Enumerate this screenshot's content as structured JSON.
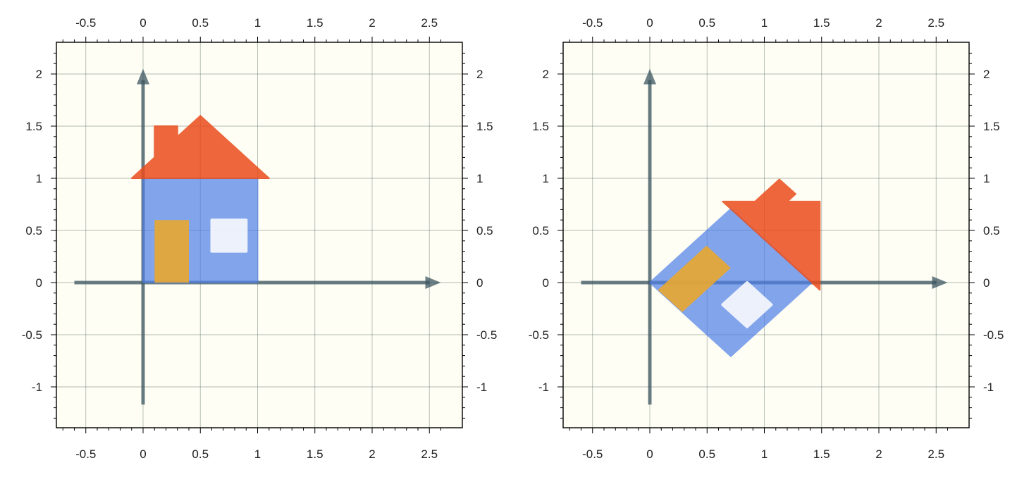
{
  "x_ticks": [
    "-0.5",
    "0",
    "0.5",
    "1",
    "1.5",
    "2",
    "2.5"
  ],
  "y_ticks": [
    "2",
    "1.5",
    "1",
    "0.5",
    "0",
    "-0.5",
    "-1"
  ],
  "colors": {
    "house_body": "#4d7ee8",
    "roof": "#ea4c1c",
    "door": "#e9a730",
    "window": "#ffffff",
    "axes": "#3c5560",
    "plot_background": "#fffef4"
  },
  "chart_data": [
    {
      "type": "diagram",
      "panel": "left",
      "xlim": [
        -0.76,
        2.78
      ],
      "ylim": [
        -1.4,
        2.3
      ],
      "grid": true,
      "house_transform": "identity",
      "axes": {
        "x": [
          -0.6,
          2.6
        ],
        "y": [
          -1.17,
          2.05
        ]
      },
      "shapes": {
        "body": [
          [
            0,
            0
          ],
          [
            1,
            0
          ],
          [
            1,
            1
          ],
          [
            0,
            1
          ]
        ],
        "roof": [
          [
            -0.1,
            1
          ],
          [
            1.1,
            1
          ],
          [
            0.5,
            1.6
          ],
          [
            0.3,
            1.4
          ],
          [
            0.3,
            1.5
          ],
          [
            0.1,
            1.5
          ],
          [
            0.1,
            1.2
          ]
        ],
        "door": [
          [
            0.1,
            0
          ],
          [
            0.4,
            0
          ],
          [
            0.4,
            0.6
          ],
          [
            0.1,
            0.6
          ]
        ],
        "window": [
          [
            0.6,
            0.3
          ],
          [
            0.9,
            0.3
          ],
          [
            0.9,
            0.6
          ],
          [
            0.6,
            0.6
          ]
        ]
      }
    },
    {
      "type": "diagram",
      "panel": "right",
      "xlim": [
        -0.76,
        2.78
      ],
      "ylim": [
        -1.4,
        2.3
      ],
      "grid": true,
      "house_transform": "rotation -45°",
      "axes": {
        "x": [
          -0.6,
          2.6
        ],
        "y": [
          -1.17,
          2.05
        ]
      },
      "shapes": {
        "body": [
          [
            0,
            0
          ],
          [
            0.707,
            -0.707
          ],
          [
            1.414,
            0
          ],
          [
            0.707,
            0.707
          ]
        ],
        "roof": [
          [
            0.636,
            0.778
          ],
          [
            1.485,
            -0.071
          ],
          [
            1.485,
            0.778
          ],
          [
            1.202,
            0.778
          ],
          [
            1.273,
            0.849
          ],
          [
            1.131,
            0.99
          ],
          [
            0.919,
            0.778
          ]
        ],
        "door": [
          [
            0.071,
            -0.071
          ],
          [
            0.283,
            -0.283
          ],
          [
            0.707,
            0.141
          ],
          [
            0.495,
            0.354
          ]
        ],
        "window": [
          [
            0.636,
            -0.212
          ],
          [
            0.849,
            -0.424
          ],
          [
            1.061,
            -0.212
          ],
          [
            0.849,
            0
          ]
        ]
      }
    }
  ]
}
